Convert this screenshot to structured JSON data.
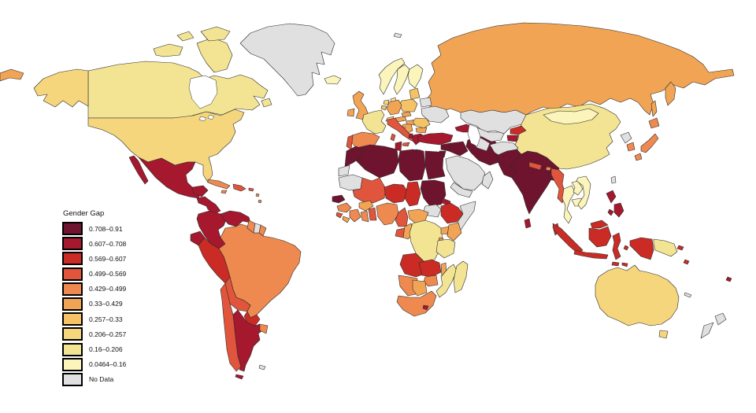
{
  "legend": {
    "title": "Gender Gap",
    "items": [
      {
        "label": "0.708–0.91",
        "color": "#6f142e"
      },
      {
        "label": "0.607–0.708",
        "color": "#a5182e"
      },
      {
        "label": "0.569–0.607",
        "color": "#ca2c25"
      },
      {
        "label": "0.499–0.569",
        "color": "#e0553c"
      },
      {
        "label": "0.429–0.499",
        "color": "#ee8a50"
      },
      {
        "label": "0.33–0.429",
        "color": "#f2a455"
      },
      {
        "label": "0.257–0.33",
        "color": "#f5c265"
      },
      {
        "label": "0.206–0.257",
        "color": "#f5d67d"
      },
      {
        "label": "0.16–0.206",
        "color": "#f3e494"
      },
      {
        "label": "0.0464–0.16",
        "color": "#fbf4bb"
      },
      {
        "label": "No Data",
        "color": "#e0e0e0"
      }
    ]
  },
  "map": {
    "ocean_color": "#ffffff",
    "border_color": "#2b2b2b"
  },
  "chart_data": {
    "type": "choropleth",
    "title": "Gender Gap",
    "bins": [
      "0.708–0.91",
      "0.607–0.708",
      "0.569–0.607",
      "0.499–0.569",
      "0.429–0.499",
      "0.33–0.429",
      "0.257–0.33",
      "0.206–0.257",
      "0.16–0.206",
      "0.0464–0.16",
      "No Data"
    ],
    "assignments": {
      "russia-chukotka": "0.33–0.429",
      "canada": "0.16–0.206",
      "greenland": "No Data",
      "usa": "0.206–0.257",
      "mexico": "0.607–0.708",
      "guatemala-region": "0.607–0.708",
      "panama-region": "0.569–0.607",
      "cuba": "0.429–0.499",
      "jamaica": "0.429–0.499",
      "hispaniola": "0.499–0.569",
      "puerto-rico": "0.499–0.569",
      "lesser-antilles": "0.429–0.499",
      "colombia": "0.607–0.708",
      "venezuela": "0.607–0.708",
      "guyana": "0.429–0.499",
      "suriname": "No Data",
      "french-guiana": "0.429–0.499",
      "ecuador": "0.607–0.708",
      "peru": "0.569–0.607",
      "brazil": "0.429–0.499",
      "bolivia": "0.499–0.569",
      "paraguay": "0.569–0.607",
      "chile": "0.499–0.569",
      "argentina": "0.607–0.708",
      "uruguay": "0.429–0.499",
      "falklands": "No Data",
      "iceland": "0.0464–0.16",
      "svalbard": "No Data",
      "uk": "0.33–0.429",
      "ireland": "0.33–0.429",
      "norway": "0.0464–0.16",
      "sweden": "0.0464–0.16",
      "finland": "0.0464–0.16",
      "denmark": "0.16–0.206",
      "baltics": "0.257–0.33",
      "belarus": "No Data",
      "ukraine": "No Data",
      "poland": "0.257–0.33",
      "germany": "0.33–0.429",
      "netherlands": "0.206–0.257",
      "belgium": "0.257–0.33",
      "france": "0.16–0.206",
      "switzerland": "0.206–0.257",
      "czechia": "0.33–0.429",
      "austria": "0.33–0.429",
      "hungary": "0.33–0.429",
      "romania": "0.257–0.33",
      "bulgaria": "0.33–0.429",
      "serbia-balkans": "0.33–0.429",
      "bosnia": "No Data",
      "albania": "0.607–0.708",
      "greece": "0.607–0.708",
      "crete": "0.607–0.708",
      "italy": "0.499–0.569",
      "sicily": "0.499–0.569",
      "sardinia": "0.499–0.569",
      "spain": "0.429–0.499",
      "portugal": "0.499–0.569",
      "russia": "0.33–0.429",
      "caucasus": "0.607–0.708",
      "turkey": "0.607–0.708",
      "syria": "0.708–0.91",
      "jordan": "0.708–0.91",
      "iraq": "0.708–0.91",
      "iran": "0.708–0.91",
      "saudi-arabia": "No Data",
      "yemen": "No Data",
      "oman": "No Data",
      "morocco": "0.708–0.91",
      "western-sahara": "No Data",
      "algeria": "0.708–0.91",
      "tunisia": "0.607–0.708",
      "libya": "0.708–0.91",
      "egypt": "0.708–0.91",
      "mauritania": "No Data",
      "mali": "0.499–0.569",
      "niger": "0.569–0.607",
      "chad": "0.569–0.607",
      "sudan": "0.708–0.91",
      "eritrea": "0.607–0.708",
      "ethiopia": "0.569–0.607",
      "somalia": "No Data",
      "south-sudan": "No Data",
      "senegal": "0.708–0.91",
      "guinea": "0.429–0.499",
      "sierra-leone": "0.499–0.569",
      "liberia": "0.33–0.429",
      "ivory-coast": "0.429–0.499",
      "burkina-faso": "0.33–0.429",
      "ghana": "0.429–0.499",
      "togo-benin": "0.499–0.569",
      "nigeria": "0.429–0.499",
      "cameroon": "0.499–0.569",
      "car": "0.33–0.429",
      "gabon": "0.499–0.569",
      "congo": "0.33–0.429",
      "drc": "0.16–0.206",
      "uganda": "0.33–0.429",
      "kenya": "0.33–0.429",
      "rwanda": "0.429–0.499",
      "tanzania": "0.16–0.206",
      "angola": "0.569–0.607",
      "zambia": "0.569–0.607",
      "malawi": "0.33–0.429",
      "mozambique": "0.16–0.206",
      "zimbabwe": "0.429–0.499",
      "namibia": "0.429–0.499",
      "botswana": "0.33–0.429",
      "south-africa": "0.429–0.499",
      "lesotho": "0.607–0.708",
      "madagascar": "0.16–0.206",
      "kazakhstan": "No Data",
      "uzbekistan": "No Data",
      "turkmenistan": "No Data",
      "kyrgyzstan": "0.569–0.607",
      "tajikistan": "0.607–0.708",
      "afghanistan": "No Data",
      "pakistan": "0.708–0.91",
      "india": "0.708–0.91",
      "nepal": "0.499–0.569",
      "bhutan": "0.429–0.499",
      "bangladesh": "0.708–0.91",
      "sri-lanka": "0.607–0.708",
      "china": "0.16–0.206",
      "mongolia": "0.0464–0.16",
      "myanmar": "0.499–0.569",
      "thailand": "0.0464–0.16",
      "laos": "0.0464–0.16",
      "cambodia": "0.0464–0.16",
      "vietnam": "0.0464–0.16",
      "north-korea": "No Data",
      "south-korea": "0.429–0.499",
      "japan": "0.429–0.499",
      "taiwan": "No Data",
      "philippines": "0.607–0.708",
      "malaysia": "0.569–0.607",
      "indonesia": "0.569–0.607",
      "papua-new-guinea": "0.16–0.206",
      "melanesia-islands": "0.569–0.607",
      "new-caledonia": "No Data",
      "fiji": "0.607–0.708",
      "australia": "0.206–0.257",
      "tasmania": "0.206–0.257",
      "new-zealand": "No Data"
    }
  }
}
